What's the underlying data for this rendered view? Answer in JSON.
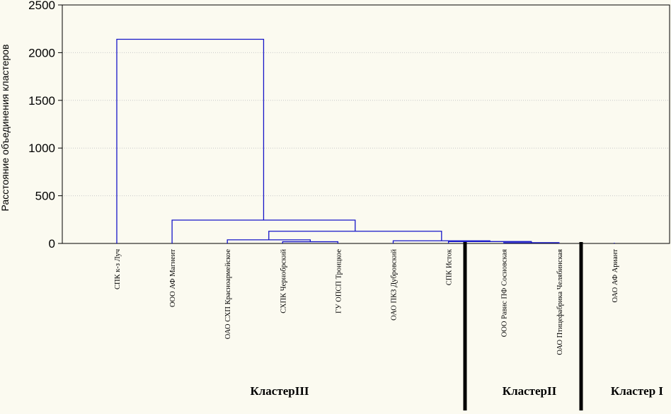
{
  "chart_data": {
    "type": "dendrogram",
    "ylabel": "Расстояние объединения кластеров",
    "ylim": [
      0,
      2500
    ],
    "yticks": [
      0,
      500,
      1000,
      1500,
      2000,
      2500
    ],
    "grid": "horizontal dotted",
    "line_color": "#1515c8",
    "leaves": [
      "СПК к-з Луч",
      "ООО АФ Магнеит",
      "ОАО СХП Красноармейское",
      "СХПК Чернобрский",
      "ГУ ОПСП Троицкое",
      "ОАО ПКЗ Дубровский",
      "СПК Исток",
      "ООО Равис ПФ Сосновская",
      "ОАО Птицефабрика Челябинская",
      "ОАО АФ Ариант"
    ],
    "merges": [
      {
        "left": 3,
        "right": 4,
        "height": 18
      },
      {
        "left": 2,
        "right": 3.5,
        "height": 38
      },
      {
        "left": 7,
        "right": 8,
        "height": 8
      },
      {
        "left": 6,
        "right": 7.5,
        "height": 20
      },
      {
        "left": 5,
        "right": 6.75,
        "height": 28
      },
      {
        "left": 2.75,
        "right": 5.875,
        "height": 128
      },
      {
        "left": 1,
        "right": 4.3125,
        "height": 245
      },
      {
        "left": 0,
        "right": 2.65625,
        "height": 2140
      }
    ],
    "clusters": [
      {
        "label": "КластерIII",
        "from_leaf": 0,
        "to_leaf": 6
      },
      {
        "label": "КластерII",
        "from_leaf": 7,
        "to_leaf": 8
      },
      {
        "label": "Кластер I",
        "from_leaf": 9,
        "to_leaf": 9
      }
    ]
  }
}
